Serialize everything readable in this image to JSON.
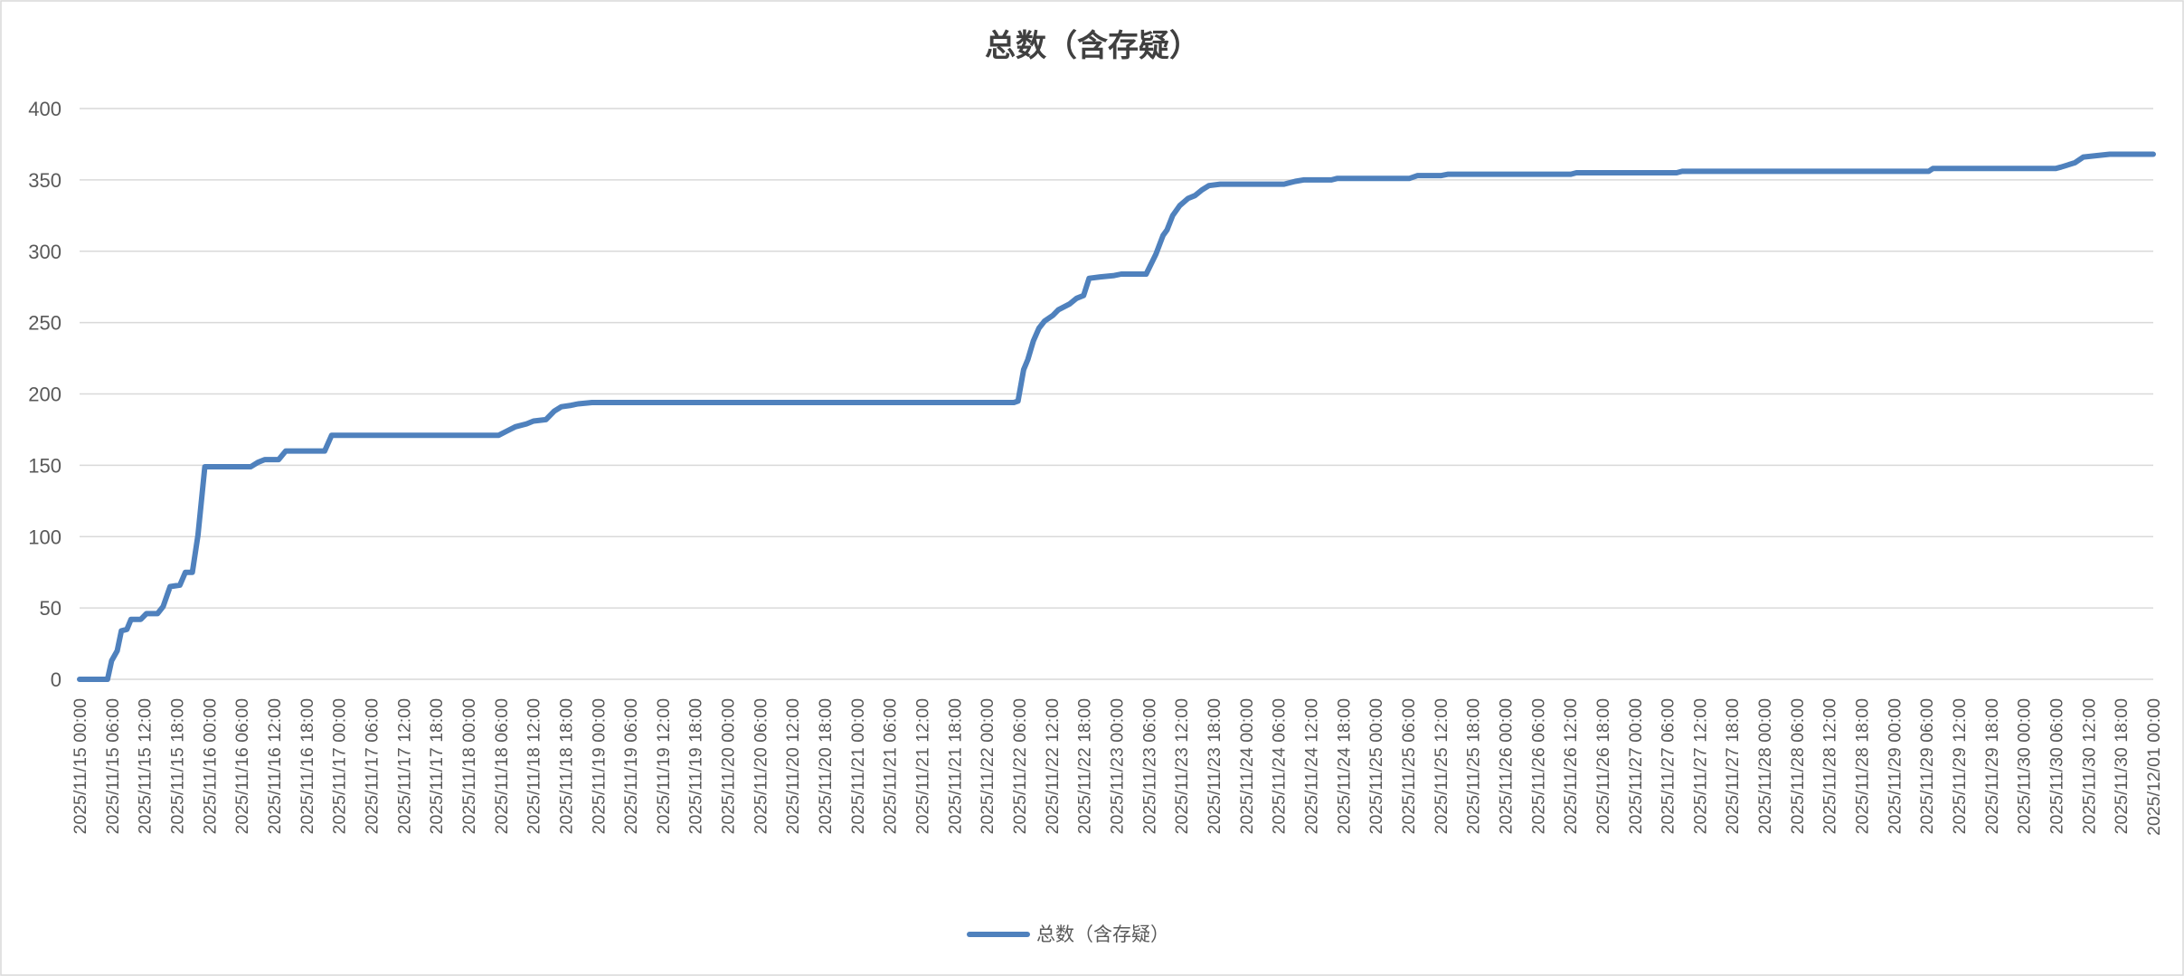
{
  "chart_data": {
    "type": "line",
    "title": "总数（含存疑）",
    "xlabel": "",
    "ylabel": "",
    "ylim": [
      0,
      400
    ],
    "yticks": [
      0,
      50,
      100,
      150,
      200,
      250,
      300,
      350,
      400
    ],
    "xlim": [
      "2025/11/15 00:00",
      "2025/12/01 00:00"
    ],
    "grid": true,
    "legend_position": "bottom",
    "color": "#4f81bd",
    "xtick_labels": [
      "2025/11/15 00:00",
      "2025/11/15 06:00",
      "2025/11/15 12:00",
      "2025/11/15 18:00",
      "2025/11/16 00:00",
      "2025/11/16 06:00",
      "2025/11/16 12:00",
      "2025/11/16 18:00",
      "2025/11/17 00:00",
      "2025/11/17 06:00",
      "2025/11/17 12:00",
      "2025/11/17 18:00",
      "2025/11/18 00:00",
      "2025/11/18 06:00",
      "2025/11/18 12:00",
      "2025/11/18 18:00",
      "2025/11/19 00:00",
      "2025/11/19 06:00",
      "2025/11/19 12:00",
      "2025/11/19 18:00",
      "2025/11/20 00:00",
      "2025/11/20 06:00",
      "2025/11/20 12:00",
      "2025/11/20 18:00",
      "2025/11/21 00:00",
      "2025/11/21 06:00",
      "2025/11/21 12:00",
      "2025/11/21 18:00",
      "2025/11/22 00:00",
      "2025/11/22 06:00",
      "2025/11/22 12:00",
      "2025/11/22 18:00",
      "2025/11/23 00:00",
      "2025/11/23 06:00",
      "2025/11/23 12:00",
      "2025/11/23 18:00",
      "2025/11/24 00:00",
      "2025/11/24 06:00",
      "2025/11/24 12:00",
      "2025/11/24 18:00",
      "2025/11/25 00:00",
      "2025/11/25 06:00",
      "2025/11/25 12:00",
      "2025/11/25 18:00",
      "2025/11/26 00:00",
      "2025/11/26 06:00",
      "2025/11/26 12:00",
      "2025/11/26 18:00",
      "2025/11/27 00:00",
      "2025/11/27 06:00",
      "2025/11/27 12:00",
      "2025/11/27 18:00",
      "2025/11/28 00:00",
      "2025/11/28 06:00",
      "2025/11/28 12:00",
      "2025/11/28 18:00",
      "2025/11/29 00:00",
      "2025/11/29 06:00",
      "2025/11/29 12:00",
      "2025/11/29 18:00",
      "2025/11/30 00:00",
      "2025/11/30 06:00",
      "2025/11/30 12:00",
      "2025/11/30 18:00",
      "2025/12/01 00:00"
    ],
    "series": [
      {
        "name": "总数（含存疑）",
        "points": [
          [
            "2025/11/15 00:00",
            0
          ],
          [
            "2025/11/15 05:10",
            0
          ],
          [
            "2025/11/15 05:56",
            13
          ],
          [
            "2025/11/15 06:58",
            20
          ],
          [
            "2025/11/15 07:44",
            34
          ],
          [
            "2025/11/15 08:46",
            35
          ],
          [
            "2025/11/15 09:32",
            42
          ],
          [
            "2025/11/15 11:20",
            42
          ],
          [
            "2025/11/15 12:23",
            46
          ],
          [
            "2025/11/15 14:26",
            46
          ],
          [
            "2025/11/15 15:28",
            51
          ],
          [
            "2025/11/15 16:46",
            65
          ],
          [
            "2025/11/15 18:34",
            66
          ],
          [
            "2025/11/15 19:36",
            75
          ],
          [
            "2025/11/15 20:53",
            75
          ],
          [
            "2025/11/15 21:55",
            101
          ],
          [
            "2025/11/15 23:12",
            149
          ],
          [
            "2025/11/16 07:42",
            149
          ],
          [
            "2025/11/16 09:00",
            152
          ],
          [
            "2025/11/16 10:17",
            154
          ],
          [
            "2025/11/16 12:52",
            154
          ],
          [
            "2025/11/16 14:10",
            160
          ],
          [
            "2025/11/16 21:23",
            160
          ],
          [
            "2025/11/16 22:40",
            171
          ],
          [
            "2025/11/18 05:36",
            171
          ],
          [
            "2025/11/18 07:09",
            174
          ],
          [
            "2025/11/18 08:42",
            177
          ],
          [
            "2025/11/18 10:46",
            179
          ],
          [
            "2025/11/18 12:03",
            181
          ],
          [
            "2025/11/18 14:22",
            182
          ],
          [
            "2025/11/18 15:55",
            188
          ],
          [
            "2025/11/18 17:13",
            191
          ],
          [
            "2025/11/18 19:01",
            192
          ],
          [
            "2025/11/18 20:18",
            193
          ],
          [
            "2025/11/18 22:53",
            194
          ],
          [
            "2025/11/22 05:01",
            194
          ],
          [
            "2025/11/22 05:47",
            195
          ],
          [
            "2025/11/22 06:49",
            217
          ],
          [
            "2025/11/22 07:35",
            224
          ],
          [
            "2025/11/22 08:37",
            237
          ],
          [
            "2025/11/22 09:39",
            246
          ],
          [
            "2025/11/22 10:41",
            251
          ],
          [
            "2025/11/22 12:14",
            255
          ],
          [
            "2025/11/22 13:16",
            259
          ],
          [
            "2025/11/22 15:20",
            263
          ],
          [
            "2025/11/22 16:37",
            267
          ],
          [
            "2025/11/22 17:55",
            269
          ],
          [
            "2025/11/22 18:57",
            281
          ],
          [
            "2025/11/22 21:01",
            282
          ],
          [
            "2025/11/22 23:36",
            283
          ],
          [
            "2025/11/23 00:53",
            284
          ],
          [
            "2025/11/23 05:31",
            284
          ],
          [
            "2025/11/23 07:19",
            298
          ],
          [
            "2025/11/23 08:37",
            311
          ],
          [
            "2025/11/23 09:23",
            315
          ],
          [
            "2025/11/23 10:25",
            325
          ],
          [
            "2025/11/23 11:43",
            332
          ],
          [
            "2025/11/23 13:16",
            337
          ],
          [
            "2025/11/23 14:33",
            339
          ],
          [
            "2025/11/23 15:51",
            343
          ],
          [
            "2025/11/23 17:08",
            346
          ],
          [
            "2025/11/23 19:12",
            347
          ],
          [
            "2025/11/24 07:02",
            347
          ],
          [
            "2025/11/24 09:06",
            349
          ],
          [
            "2025/11/24 10:39",
            350
          ],
          [
            "2025/11/24 15:49",
            350
          ],
          [
            "2025/11/24 16:51",
            351
          ],
          [
            "2025/11/25 06:14",
            351
          ],
          [
            "2025/11/25 07:47",
            353
          ],
          [
            "2025/11/25 12:10",
            353
          ],
          [
            "2025/11/25 13:27",
            354
          ],
          [
            "2025/11/26 12:09",
            354
          ],
          [
            "2025/11/26 13:11",
            355
          ],
          [
            "2025/11/27 07:44",
            355
          ],
          [
            "2025/11/27 08:46",
            356
          ],
          [
            "2025/11/29 06:25",
            356
          ],
          [
            "2025/11/29 07:12",
            358
          ],
          [
            "2025/11/30 05:54",
            358
          ],
          [
            "2025/11/30 06:56",
            359
          ],
          [
            "2025/11/30 09:30",
            362
          ],
          [
            "2025/11/30 11:03",
            366
          ],
          [
            "2025/11/30 13:22",
            367
          ],
          [
            "2025/11/30 15:56",
            368
          ],
          [
            "2025/12/01 00:00",
            368
          ]
        ]
      }
    ]
  }
}
